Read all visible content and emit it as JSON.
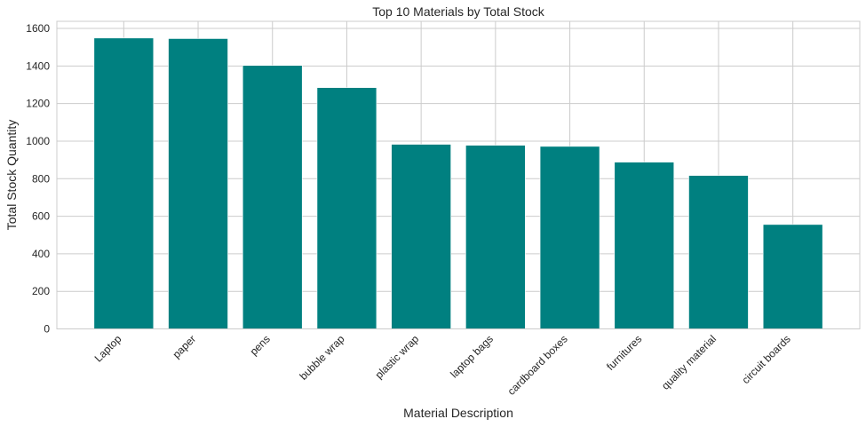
{
  "chart_data": {
    "type": "bar",
    "title": "Top 10 Materials by Total Stock",
    "xlabel": "Material Description",
    "ylabel": "Total Stock Quantity",
    "categories": [
      "Laptop",
      "paper",
      "pens",
      "bubble wrap",
      "plastic wrap",
      "laptop bags",
      "cardboard boxes",
      "furnitures",
      "quality material",
      "circuit boards"
    ],
    "values": [
      1549,
      1546,
      1403,
      1285,
      983,
      978,
      972,
      888,
      817,
      556
    ],
    "yticks": [
      0,
      200,
      400,
      600,
      800,
      1000,
      1200,
      1400,
      1600
    ],
    "ylim": [
      0,
      1638
    ],
    "grid": true,
    "bar_color": "#008080",
    "grid_color": "#cccccc"
  }
}
